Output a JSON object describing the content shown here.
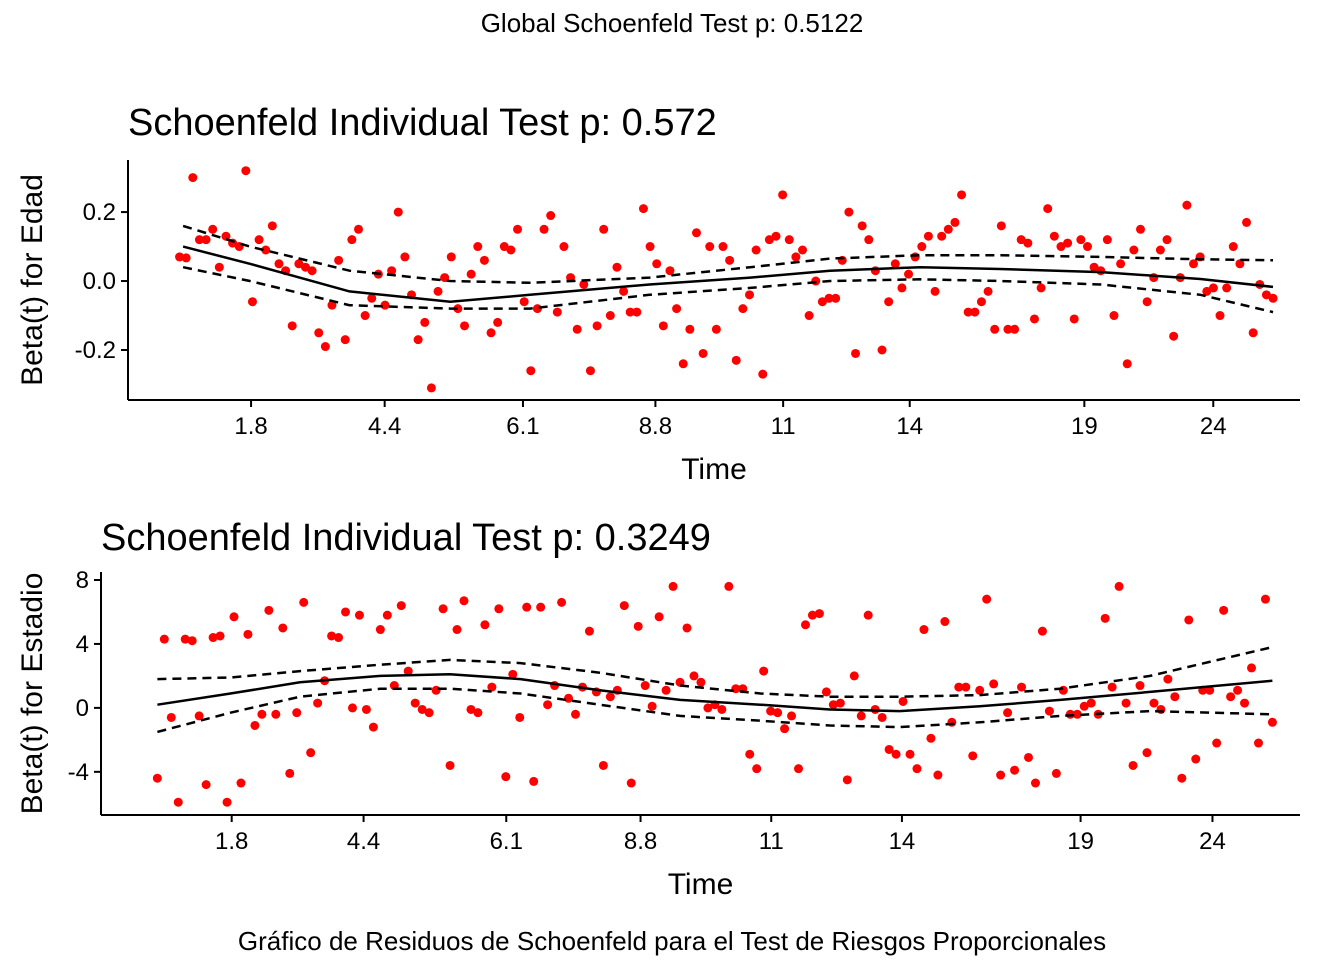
{
  "global_title": "Global Schoenfeld Test p: 0.5122",
  "caption": "Gráfico de Residuos de Schoenfeld para el Test de Riesgos Proporcionales",
  "colors": {
    "points": "#ff0000",
    "lines": "#000000"
  },
  "chart_data": [
    {
      "type": "scatter",
      "title": "Schoenfeld Individual Test p: 0.572",
      "xlabel": "Time",
      "ylabel": "Beta(t) for Edad",
      "x_scale": "transformed time (0-1)",
      "xlim": [
        0,
        1
      ],
      "ylim": [
        -0.345,
        0.351
      ],
      "xticks": [
        {
          "pos": 0.105,
          "label": "1.8"
        },
        {
          "pos": 0.219,
          "label": "4.4"
        },
        {
          "pos": 0.337,
          "label": "6.1"
        },
        {
          "pos": 0.45,
          "label": "8.8"
        },
        {
          "pos": 0.559,
          "label": "11"
        },
        {
          "pos": 0.667,
          "label": "14"
        },
        {
          "pos": 0.816,
          "label": "19"
        },
        {
          "pos": 0.926,
          "label": "24"
        }
      ],
      "yticks": [
        {
          "value": 0.2,
          "label": "0.2"
        },
        {
          "value": 0.0,
          "label": "0.0"
        },
        {
          "value": -0.2,
          "label": "-0.2"
        }
      ],
      "points_x_range": [
        0.044,
        0.977
      ],
      "points_y": [
        0.07,
        0.067,
        0.3,
        0.12,
        0.12,
        0.15,
        0.04,
        0.13,
        0.11,
        0.1,
        0.32,
        -0.06,
        0.12,
        0.09,
        0.16,
        0.05,
        0.03,
        -0.13,
        0.05,
        0.04,
        0.03,
        -0.15,
        -0.19,
        -0.07,
        0.06,
        -0.17,
        0.12,
        0.15,
        -0.1,
        -0.05,
        0.02,
        -0.07,
        0.03,
        0.2,
        0.07,
        -0.04,
        -0.17,
        -0.12,
        -0.31,
        -0.03,
        0.01,
        0.07,
        -0.08,
        -0.13,
        0.02,
        0.1,
        0.06,
        -0.15,
        -0.12,
        0.1,
        0.09,
        0.15,
        -0.06,
        -0.26,
        -0.08,
        0.15,
        0.19,
        -0.09,
        0.1,
        0.01,
        -0.14,
        -0.01,
        -0.26,
        -0.13,
        0.15,
        -0.1,
        0.04,
        -0.03,
        -0.09,
        -0.09,
        0.21,
        0.1,
        0.05,
        -0.13,
        0.03,
        -0.08,
        -0.24,
        -0.14,
        0.14,
        -0.21,
        0.1,
        -0.14,
        0.1,
        0.06,
        -0.23,
        -0.08,
        -0.04,
        0.09,
        -0.27,
        0.12,
        0.13,
        0.25,
        0.12,
        0.07,
        0.09,
        -0.1,
        0.0,
        -0.06,
        -0.05,
        -0.05,
        0.06,
        0.2,
        -0.21,
        0.16,
        0.12,
        0.03,
        -0.2,
        -0.06,
        0.05,
        -0.02,
        0.02,
        0.07,
        0.1,
        0.13,
        -0.03,
        0.13,
        0.15,
        0.17,
        0.25,
        -0.09,
        -0.09,
        -0.06,
        -0.03,
        -0.14,
        0.16,
        -0.14,
        -0.14,
        0.12,
        0.11,
        -0.11,
        -0.02,
        0.21,
        0.13,
        0.1,
        0.11,
        -0.11,
        0.12,
        0.1,
        0.04,
        0.03,
        0.12,
        -0.1,
        0.05,
        -0.24,
        0.09,
        0.15,
        -0.06,
        0.01,
        0.09,
        0.12,
        -0.16,
        0.01,
        0.22,
        0.05,
        0.07,
        -0.03,
        -0.02,
        -0.1,
        -0.02,
        0.1,
        0.05,
        0.17,
        -0.15,
        -0.01,
        -0.04,
        -0.05
      ],
      "fit_x": [
        0.047,
        0.104,
        0.189,
        0.275,
        0.343,
        0.445,
        0.531,
        0.599,
        0.676,
        0.744,
        0.83,
        0.915,
        0.977
      ],
      "fit_y": [
        0.1,
        0.05,
        -0.03,
        -0.06,
        -0.04,
        -0.01,
        0.01,
        0.03,
        0.04,
        0.035,
        0.026,
        0.006,
        -0.017
      ],
      "upper_y": [
        0.16,
        0.1,
        0.03,
        0.0,
        -0.005,
        0.01,
        0.04,
        0.065,
        0.075,
        0.075,
        0.07,
        0.063,
        0.06
      ],
      "lower_y": [
        0.04,
        0.0,
        -0.07,
        -0.08,
        -0.08,
        -0.04,
        -0.02,
        0.0,
        0.005,
        0.0,
        -0.01,
        -0.04,
        -0.09
      ]
    },
    {
      "type": "scatter",
      "title": "Schoenfeld Individual Test p: 0.3249",
      "xlabel": "Time",
      "ylabel": "Beta(t) for Estadio",
      "x_scale": "transformed time (0-1)",
      "xlim": [
        0,
        1
      ],
      "ylim": [
        -6.7,
        8.5
      ],
      "xticks": [
        {
          "pos": 0.109,
          "label": "1.8"
        },
        {
          "pos": 0.219,
          "label": "4.4"
        },
        {
          "pos": 0.338,
          "label": "6.1"
        },
        {
          "pos": 0.45,
          "label": "8.8"
        },
        {
          "pos": 0.559,
          "label": "11"
        },
        {
          "pos": 0.668,
          "label": "14"
        },
        {
          "pos": 0.817,
          "label": "19"
        },
        {
          "pos": 0.927,
          "label": "24"
        }
      ],
      "yticks": [
        {
          "value": 8,
          "label": "8"
        },
        {
          "value": 4,
          "label": "4"
        },
        {
          "value": 0,
          "label": "0"
        },
        {
          "value": -4,
          "label": "-4"
        }
      ],
      "points_x_range": [
        0.047,
        0.977
      ],
      "points_y": [
        -4.4,
        4.3,
        -0.6,
        -5.9,
        4.3,
        4.2,
        -0.5,
        -4.8,
        4.4,
        4.5,
        -5.9,
        5.7,
        -4.7,
        4.6,
        -1.1,
        -0.4,
        6.1,
        -0.4,
        5.0,
        -4.1,
        -0.3,
        6.6,
        -2.8,
        0.3,
        1.7,
        4.5,
        4.4,
        6.0,
        0,
        5.8,
        -0.1,
        -1.2,
        4.9,
        5.8,
        1.4,
        6.4,
        2.3,
        0.3,
        -0.1,
        -0.3,
        1.1,
        6.2,
        -3.6,
        4.9,
        6.7,
        -0.1,
        -0.3,
        5.2,
        1.3,
        6.2,
        -4.3,
        2.1,
        -0.6,
        6.3,
        -4.6,
        6.3,
        0.2,
        1.4,
        6.6,
        0.6,
        -0.4,
        1.3,
        4.8,
        1.0,
        -3.6,
        0.7,
        1.1,
        6.4,
        -4.7,
        5.1,
        1.4,
        0.1,
        5.7,
        1.1,
        7.6,
        1.6,
        5.0,
        2.0,
        1.6,
        0,
        0.2,
        -0.1,
        7.6,
        1.2,
        1.2,
        -2.9,
        -3.8,
        2.3,
        -0.2,
        -0.3,
        -1.3,
        -0.5,
        -3.8,
        5.2,
        5.8,
        5.9,
        1.0,
        0.2,
        0.3,
        -4.5,
        2.0,
        -0.5,
        5.8,
        -0.1,
        -0.6,
        -2.6,
        -2.9,
        0.4,
        -2.9,
        -3.8,
        4.9,
        -1.9,
        -4.2,
        5.4,
        -0.9,
        1.3,
        1.3,
        -3.0,
        1.1,
        6.8,
        1.5,
        -4.2,
        -0.3,
        -3.9,
        1.3,
        -3.1,
        -4.7,
        4.8,
        -0.2,
        -4.1,
        1.1,
        -0.4,
        -0.4,
        0.1,
        0.3,
        -0.4,
        5.6,
        1.3,
        7.6,
        0.3,
        -3.6,
        1.4,
        -2.8,
        0.3,
        -0.1,
        1.8,
        0.7,
        -4.4,
        5.5,
        -3.2,
        1.1,
        1.1,
        -2.2,
        6.1,
        0.7,
        1.1,
        0.3,
        2.5,
        -2.2,
        6.8,
        -0.9
      ],
      "fit_x": [
        0.047,
        0.108,
        0.166,
        0.233,
        0.291,
        0.35,
        0.416,
        0.483,
        0.55,
        0.608,
        0.666,
        0.733,
        0.8,
        0.875,
        0.977
      ],
      "fit_y": [
        0.2,
        0.9,
        1.6,
        2.0,
        2.1,
        1.8,
        1.1,
        0.5,
        0.2,
        -0.1,
        -0.2,
        0.1,
        0.5,
        1.0,
        1.7
      ],
      "upper_y": [
        1.8,
        1.9,
        2.3,
        2.7,
        3.0,
        2.8,
        2.2,
        1.4,
        0.9,
        0.7,
        0.7,
        0.8,
        1.2,
        2.0,
        3.8
      ],
      "lower_y": [
        -1.5,
        -0.3,
        0.7,
        1.2,
        1.2,
        0.9,
        0.2,
        -0.5,
        -0.8,
        -1.1,
        -1.2,
        -0.9,
        -0.5,
        -0.2,
        -0.4
      ]
    }
  ]
}
